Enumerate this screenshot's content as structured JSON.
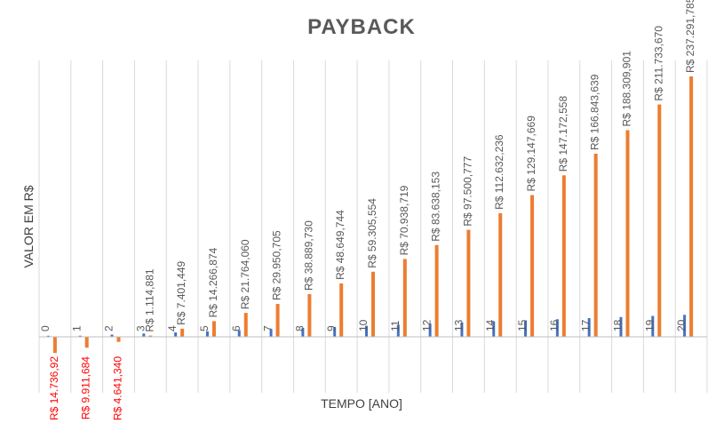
{
  "chart_data": {
    "type": "bar",
    "title": "PAYBACK",
    "xlabel": "TEMPO [ANO]",
    "ylabel": "VALOR EM R$",
    "categories": [
      "0",
      "1",
      "2",
      "3",
      "4",
      "5",
      "6",
      "7",
      "8",
      "9",
      "10",
      "11",
      "12",
      "13",
      "14",
      "15",
      "16",
      "17",
      "18",
      "19",
      "20"
    ],
    "series": [
      {
        "values": [
          0,
          1,
          2,
          3,
          4,
          5,
          6,
          7,
          8,
          9,
          10,
          11,
          12,
          13,
          14,
          15,
          16,
          17,
          18,
          19,
          20
        ]
      },
      {
        "values": [
          -14.73692,
          -9.911684,
          -4.64134,
          1.114881,
          7.401449,
          14.266874,
          21.76406,
          29.950705,
          38.88973,
          48.649744,
          59.305554,
          70.938719,
          83.638153,
          97.500777,
          112.632236,
          129.147669,
          147.172558,
          166.843639,
          188.309901,
          211.73367,
          237.291785
        ]
      }
    ],
    "data_labels": [
      "R$ 14.736,92",
      "R$ 9.911,684",
      "R$ 4.641,340",
      "R$ 1.114,881",
      "R$ 7.401,449",
      "R$ 14.266,874",
      "R$ 21.764,060",
      "R$ 29.950,705",
      "R$ 38.889,730",
      "R$ 48.649,744",
      "R$ 59.305,554",
      "R$ 70.938,719",
      "R$ 83.638,153",
      "R$ 97.500,777",
      "R$ 112.632,236",
      "R$ 129.147,669",
      "R$ 147.172,558",
      "R$ 166.843,639",
      "R$ 188.309,901",
      "R$ 211.733,670",
      "R$ 237.291,785"
    ],
    "colors": {
      "series_1": "#4472C4",
      "series_2": "#ED7D31",
      "negative_label": "#FF0000",
      "positive_label": "#595959",
      "grid": "#D9D9D9",
      "axis": "#BFBFBF"
    },
    "grid": "vertical"
  }
}
